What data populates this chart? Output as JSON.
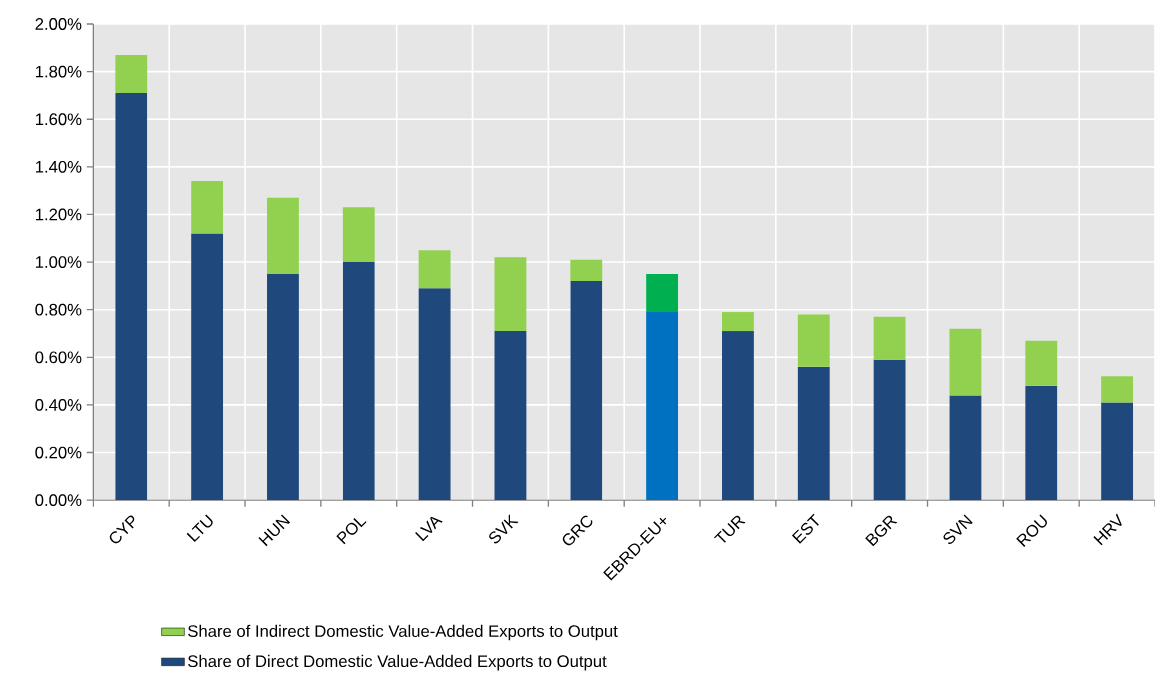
{
  "chart_data": {
    "type": "bar",
    "stacked": true,
    "categories": [
      "CYP",
      "LTU",
      "HUN",
      "POL",
      "LVA",
      "SVK",
      "GRC",
      "EBRD-EU+",
      "TUR",
      "EST",
      "BGR",
      "SVN",
      "ROU",
      "HRV"
    ],
    "series": [
      {
        "name": "Share of Direct Domestic Value-Added Exports to Output",
        "color": "#1f497d",
        "colors": [
          "#1f497d",
          "#1f497d",
          "#1f497d",
          "#1f497d",
          "#1f497d",
          "#1f497d",
          "#1f497d",
          "#0070c0",
          "#1f497d",
          "#1f497d",
          "#1f497d",
          "#1f497d",
          "#1f497d",
          "#1f497d"
        ],
        "values": [
          1.71,
          1.12,
          0.95,
          1.0,
          0.89,
          0.71,
          0.92,
          0.79,
          0.71,
          0.56,
          0.59,
          0.44,
          0.48,
          0.41
        ]
      },
      {
        "name": "Share of Indirect Domestic Value-Added Exports to Output",
        "color": "#92d050",
        "colors": [
          "#92d050",
          "#92d050",
          "#92d050",
          "#92d050",
          "#92d050",
          "#92d050",
          "#92d050",
          "#00b050",
          "#92d050",
          "#92d050",
          "#92d050",
          "#92d050",
          "#92d050",
          "#92d050"
        ],
        "values": [
          0.16,
          0.22,
          0.32,
          0.23,
          0.16,
          0.31,
          0.09,
          0.16,
          0.08,
          0.22,
          0.18,
          0.28,
          0.19,
          0.11
        ]
      }
    ],
    "ylim": [
      0,
      2
    ],
    "yticks": [
      {
        "value": 0,
        "label": "0.00%"
      },
      {
        "value": 0.2,
        "label": "0.20%"
      },
      {
        "value": 0.4,
        "label": "0.40%"
      },
      {
        "value": 0.6,
        "label": "0.60%"
      },
      {
        "value": 0.8,
        "label": "0.80%"
      },
      {
        "value": 1.0,
        "label": "1.00%"
      },
      {
        "value": 1.2,
        "label": "1.20%"
      },
      {
        "value": 1.4,
        "label": "1.40%"
      },
      {
        "value": 1.6,
        "label": "1.60%"
      },
      {
        "value": 1.8,
        "label": "1.80%"
      },
      {
        "value": 2.0,
        "label": "2.00%"
      }
    ],
    "grid": true,
    "legend": "bottom"
  }
}
